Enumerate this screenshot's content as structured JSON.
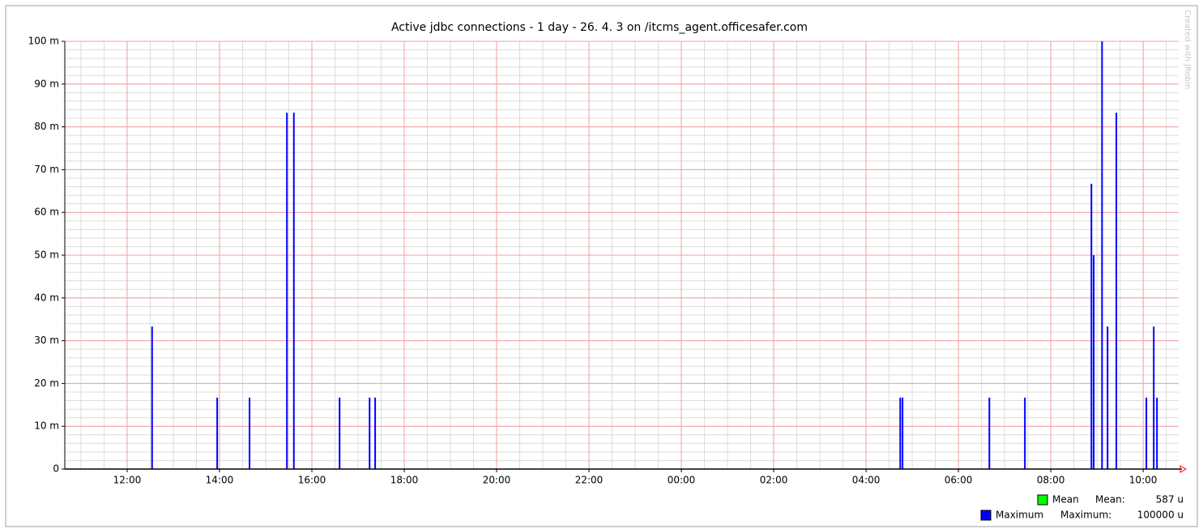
{
  "chart_data": {
    "type": "bar",
    "title": "Active jdbc connections - 1 day - 26. 4. 3 on /itcms_agent.officesafer.com",
    "watermark": "Created with JRobin",
    "xlim": [
      10.65,
      34.77
    ],
    "xticks": [
      {
        "value": 12,
        "label": "12:00"
      },
      {
        "value": 14,
        "label": "14:00"
      },
      {
        "value": 16,
        "label": "16:00"
      },
      {
        "value": 18,
        "label": "18:00"
      },
      {
        "value": 20,
        "label": "20:00"
      },
      {
        "value": 22,
        "label": "22:00"
      },
      {
        "value": 24,
        "label": "00:00"
      },
      {
        "value": 26,
        "label": "02:00"
      },
      {
        "value": 28,
        "label": "04:00"
      },
      {
        "value": 30,
        "label": "06:00"
      },
      {
        "value": 32,
        "label": "08:00"
      },
      {
        "value": 34,
        "label": "10:00"
      }
    ],
    "ylim": [
      0,
      100
    ],
    "yticks": [
      0,
      {
        "value": 10,
        "label": "10 m"
      },
      {
        "value": 20,
        "label": "20 m"
      },
      {
        "value": 30,
        "label": "30 m"
      },
      {
        "value": 40,
        "label": "40 m"
      },
      {
        "value": 50,
        "label": "50 m"
      },
      {
        "value": 60,
        "label": "60 m"
      },
      {
        "value": 70,
        "label": "70 m"
      },
      {
        "value": 80,
        "label": "80 m"
      },
      {
        "value": 90,
        "label": "90 m"
      },
      {
        "value": 100,
        "label": "100 m"
      }
    ],
    "grid": true,
    "minor_grid": {
      "x_step": 0.5,
      "y_step": 2
    },
    "x": [
      12.54,
      13.95,
      14.65,
      15.46,
      15.61,
      16.6,
      17.25,
      17.37,
      28.74,
      28.79,
      30.67,
      31.44,
      32.88,
      32.93,
      33.11,
      33.23,
      33.42,
      34.07,
      34.23,
      34.3
    ],
    "series": [
      {
        "name": "Maximum",
        "color": "#0000ff",
        "values": [
          33.3,
          16.7,
          16.7,
          83.3,
          83.3,
          16.7,
          16.7,
          16.7,
          16.7,
          16.7,
          16.7,
          16.7,
          66.7,
          50,
          100,
          33.3,
          83.3,
          16.7,
          33.3,
          16.7
        ]
      }
    ],
    "legend": [
      {
        "name": "Mean",
        "color": "#00ff00",
        "stat_label": "Mean:",
        "stat": "587 u"
      },
      {
        "name": "Maximum",
        "color": "#0000ff",
        "stat_label": "Maximum:",
        "stat": "100000 u"
      }
    ]
  }
}
